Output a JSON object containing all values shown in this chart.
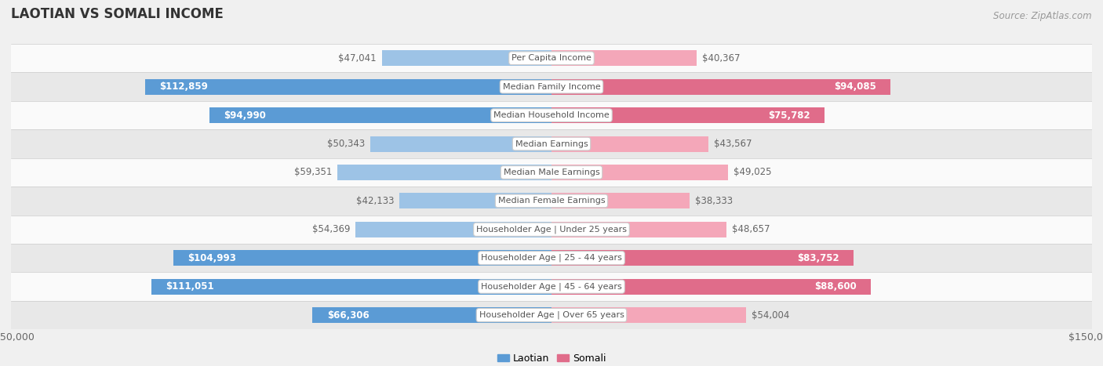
{
  "title": "LAOTIAN VS SOMALI INCOME",
  "source": "Source: ZipAtlas.com",
  "categories": [
    "Per Capita Income",
    "Median Family Income",
    "Median Household Income",
    "Median Earnings",
    "Median Male Earnings",
    "Median Female Earnings",
    "Householder Age | Under 25 years",
    "Householder Age | 25 - 44 years",
    "Householder Age | 45 - 64 years",
    "Householder Age | Over 65 years"
  ],
  "laotian_values": [
    47041,
    112859,
    94990,
    50343,
    59351,
    42133,
    54369,
    104993,
    111051,
    66306
  ],
  "somali_values": [
    40367,
    94085,
    75782,
    43567,
    49025,
    38333,
    48657,
    83752,
    88600,
    54004
  ],
  "max_val": 150000,
  "laotian_color_large": "#5b9bd5",
  "laotian_color_small": "#9dc3e6",
  "somali_color_large": "#e06c8a",
  "somali_color_small": "#f4a7b9",
  "label_color_white": "#ffffff",
  "label_color_dark": "#666666",
  "bg_color": "#f0f0f0",
  "row_bg_odd": "#fafafa",
  "row_bg_even": "#e8e8e8",
  "center_label_bg": "#ffffff",
  "center_label_color": "#555555",
  "center_label_border": "#cccccc",
  "threshold_lao": 60000,
  "threshold_som": 60000,
  "title_fontsize": 12,
  "source_fontsize": 8.5,
  "bar_label_fontsize": 8.5,
  "category_fontsize": 8,
  "legend_fontsize": 9,
  "axis_label_fontsize": 9
}
